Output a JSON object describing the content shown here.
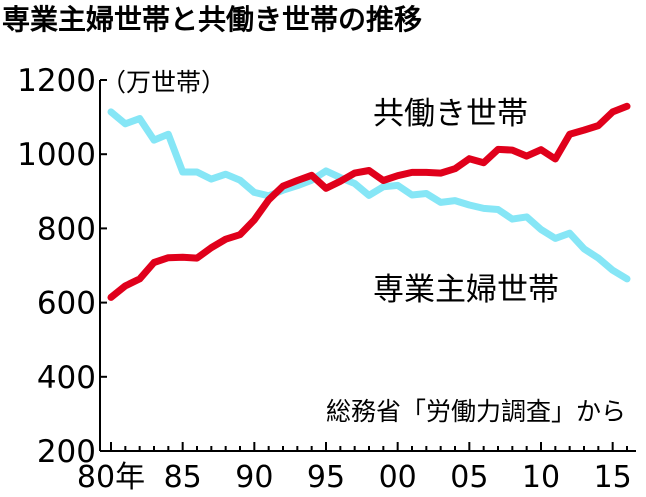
{
  "title": "専業主婦世帯と共働き世帯の推移",
  "source_note": "総務省「労働力調査」から",
  "colors": {
    "dual_income": "#e0001b",
    "housewife": "#86e6f6",
    "axis": "#000000",
    "text": "#000000"
  },
  "chart_data": {
    "type": "line",
    "title": "専業主婦世帯と共働き世帯の推移",
    "unit_label": "（万世帯）",
    "ylim": [
      200,
      1200
    ],
    "yticks": [
      200,
      400,
      600,
      800,
      1000,
      1200
    ],
    "xlim": [
      1980,
      2016
    ],
    "xtick_values": [
      1980,
      1985,
      1990,
      1995,
      2000,
      2005,
      2010,
      2015
    ],
    "xtick_labels": [
      "80年",
      "85",
      "90",
      "95",
      "00",
      "05",
      "10",
      "15"
    ],
    "grid": false,
    "x": [
      1980,
      1981,
      1982,
      1983,
      1984,
      1985,
      1986,
      1987,
      1988,
      1989,
      1990,
      1991,
      1992,
      1993,
      1994,
      1995,
      1996,
      1997,
      1998,
      1999,
      2000,
      2001,
      2002,
      2003,
      2004,
      2005,
      2006,
      2007,
      2008,
      2009,
      2010,
      2011,
      2012,
      2013,
      2014,
      2015,
      2016
    ],
    "series": [
      {
        "name": "共働き世帯",
        "color": "#e0001b",
        "values": [
          614,
          645,
          664,
          708,
          721,
          722,
          720,
          748,
          771,
          783,
          823,
          877,
          914,
          929,
          943,
          908,
          927,
          949,
          956,
          929,
          942,
          951,
          951,
          949,
          961,
          988,
          977,
          1013,
          1011,
          995,
          1012,
          987,
          1054,
          1065,
          1077,
          1114,
          1129
        ]
      },
      {
        "name": "専業主婦世帯",
        "color": "#86e6f6",
        "values": [
          1114,
          1082,
          1096,
          1038,
          1054,
          952,
          952,
          933,
          946,
          930,
          897,
          888,
          903,
          915,
          930,
          955,
          937,
          921,
          889,
          912,
          916,
          890,
          894,
          870,
          875,
          863,
          854,
          851,
          825,
          831,
          797,
          773,
          787,
          745,
          720,
          687,
          664
        ]
      }
    ]
  }
}
